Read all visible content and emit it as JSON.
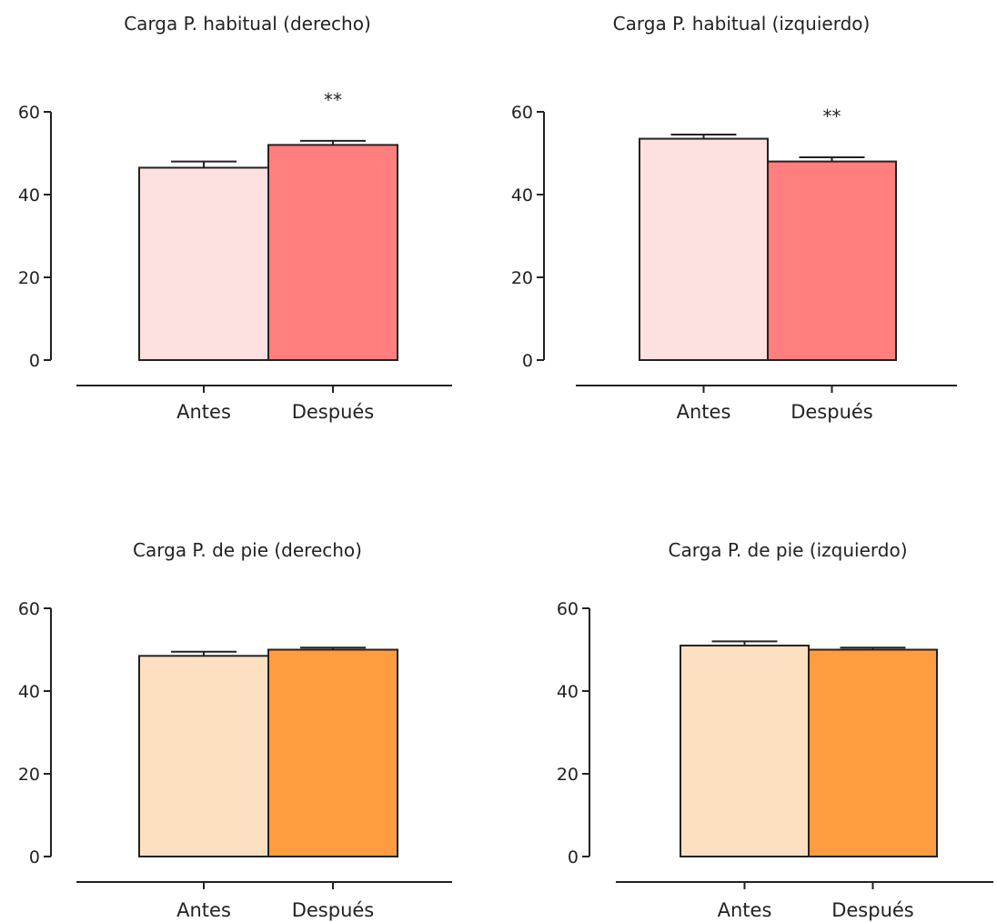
{
  "chart_data": [
    {
      "type": "bar",
      "title": "Carga P. habitual (derecho)",
      "categories": [
        "Antes",
        "Después"
      ],
      "values": [
        46.5,
        52
      ],
      "errors": [
        1.5,
        1
      ],
      "significance": [
        "",
        "**"
      ],
      "colors": [
        "#fde0e0",
        "#ff7f7f"
      ],
      "ylim": [
        0,
        60
      ],
      "yticks": [
        "0",
        "20",
        "40",
        "60"
      ],
      "xlabel": "",
      "ylabel": ""
    },
    {
      "type": "bar",
      "title": "Carga P. habitual (izquierdo)",
      "categories": [
        "Antes",
        "Después"
      ],
      "values": [
        53.5,
        48
      ],
      "errors": [
        1,
        1
      ],
      "significance": [
        "",
        "**"
      ],
      "colors": [
        "#fde0e0",
        "#ff7f7f"
      ],
      "ylim": [
        0,
        60
      ],
      "yticks": [
        "0",
        "20",
        "40",
        "60"
      ],
      "xlabel": "",
      "ylabel": ""
    },
    {
      "type": "bar",
      "title": "Carga P. de pie (derecho)",
      "categories": [
        "Antes",
        "Después"
      ],
      "values": [
        48.5,
        50
      ],
      "errors": [
        1,
        0.5
      ],
      "significance": [
        "",
        ""
      ],
      "colors": [
        "#fde0c2",
        "#ff9c40"
      ],
      "ylim": [
        0,
        60
      ],
      "yticks": [
        "0",
        "20",
        "40",
        "60"
      ],
      "xlabel": "",
      "ylabel": ""
    },
    {
      "type": "bar",
      "title": "Carga P. de pie (izquierdo)",
      "categories": [
        "Antes",
        "Después"
      ],
      "values": [
        51,
        50
      ],
      "errors": [
        1,
        0.5
      ],
      "significance": [
        "",
        ""
      ],
      "colors": [
        "#fde0c2",
        "#ff9c40"
      ],
      "ylim": [
        0,
        60
      ],
      "yticks": [
        "0",
        "20",
        "40",
        "60"
      ],
      "xlabel": "",
      "ylabel": ""
    }
  ]
}
